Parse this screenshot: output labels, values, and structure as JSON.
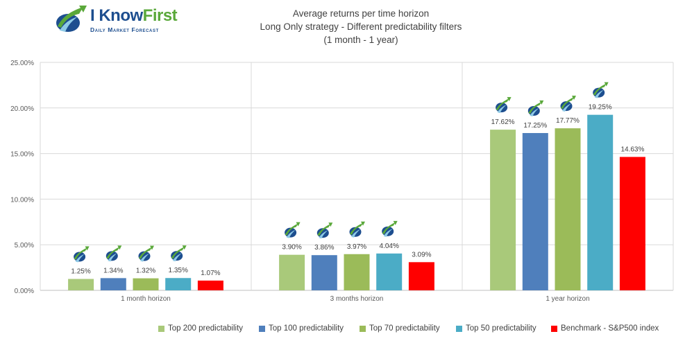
{
  "header": {
    "logo_brand_main": "I Know",
    "logo_brand_accent": "First",
    "logo_tagline": "Daily Market Forecast"
  },
  "chart_data": {
    "type": "bar",
    "title": "Average returns per time horizon",
    "subtitle": "Long Only strategy - Different predictability filters",
    "subtitle2": "(1 month - 1 year)",
    "categories": [
      "1 month horizon",
      "3 months horizon",
      "1 year horizon"
    ],
    "series": [
      {
        "name": "Top 200 predictability",
        "color": "#a9c97a",
        "values": [
          1.25,
          3.9,
          17.62
        ],
        "labels": [
          "1.25%",
          "3.90%",
          "17.62%"
        ]
      },
      {
        "name": "Top 100 predictability",
        "color": "#4f7fbc",
        "values": [
          1.34,
          3.86,
          17.25
        ],
        "labels": [
          "1.34%",
          "3.86%",
          "17.25%"
        ]
      },
      {
        "name": "Top 70 predictability",
        "color": "#9bbb59",
        "values": [
          1.32,
          3.97,
          17.77
        ],
        "labels": [
          "1.32%",
          "3.97%",
          "17.77%"
        ]
      },
      {
        "name": "Top 50 predictability",
        "color": "#4bacc6",
        "values": [
          1.35,
          4.04,
          19.25
        ],
        "labels": [
          "1.35%",
          "4.04%",
          "19.25%"
        ]
      },
      {
        "name": "Benchmark - S&P500 index",
        "color": "#ff0000",
        "values": [
          1.07,
          3.09,
          14.63
        ],
        "labels": [
          "1.07%",
          "3.09%",
          "14.63%"
        ]
      }
    ],
    "marker_series": [
      "Top 200 predictability",
      "Top 100 predictability",
      "Top 70 predictability",
      "Top 50 predictability"
    ],
    "ylim": [
      0,
      25
    ],
    "yticks": [
      {
        "value": 0,
        "label": "0.00%"
      },
      {
        "value": 5,
        "label": "5.00%"
      },
      {
        "value": 10,
        "label": "10.00%"
      },
      {
        "value": 15,
        "label": "15.00%"
      },
      {
        "value": 20,
        "label": "20.00%"
      },
      {
        "value": 25,
        "label": "25.00%"
      }
    ],
    "grid": true,
    "legend_position": "bottom",
    "xlabel": "",
    "ylabel": ""
  }
}
